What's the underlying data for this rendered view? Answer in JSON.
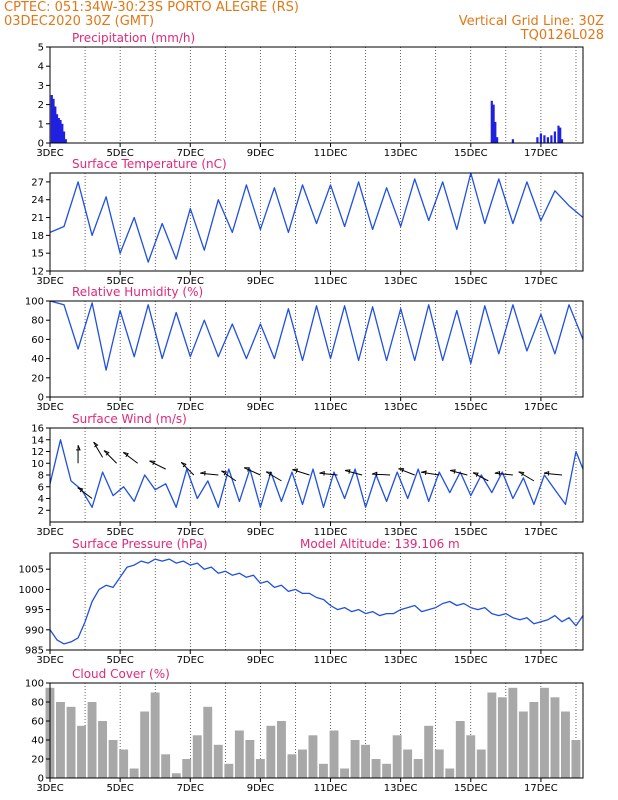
{
  "header": {
    "line1": "CPTEC:   051:34W-30:23S   PORTO ALEGRE (RS)",
    "line2_left": "03DEC2020 30Z (GMT)",
    "line2_right": "Vertical Grid Line: 30Z",
    "line3_right": "TQ0126L028"
  },
  "colors": {
    "header_text": "#e07818",
    "panel_title": "#e0287a",
    "series_line": "#2050e0",
    "bars": "#2020e0",
    "cloud_bars": "#a8a8a8",
    "grid": "#000000"
  },
  "chart_data": [
    {
      "type": "bar",
      "title": "Precipitation (mm/h)",
      "x_tick_labels": [
        "3DEC",
        "5DEC",
        "7DEC",
        "9DEC",
        "11DEC",
        "13DEC",
        "15DEC",
        "17DEC"
      ],
      "x_range_days": [
        3.0,
        18.2
      ],
      "ylim": [
        0,
        5
      ],
      "y_ticks": [
        0,
        1,
        2,
        3,
        4,
        5
      ],
      "grid": "vertical dotted at 30Z each day",
      "x": [
        3.05,
        3.1,
        3.15,
        3.2,
        3.25,
        3.3,
        3.35,
        3.4,
        3.45,
        15.6,
        15.65,
        15.7,
        15.75,
        16.2,
        16.9,
        17.0,
        17.1,
        17.2,
        17.3,
        17.4,
        17.5,
        17.55,
        17.6
      ],
      "values": [
        2.5,
        2.3,
        1.9,
        1.5,
        1.3,
        1.2,
        1.0,
        0.6,
        0.2,
        2.2,
        2.0,
        1.1,
        0.3,
        0.2,
        0.3,
        0.5,
        0.4,
        0.3,
        0.4,
        0.6,
        0.9,
        0.8,
        0.2
      ]
    },
    {
      "type": "line",
      "title": "Surface Temperature (nC)",
      "ylim": [
        12,
        28.5
      ],
      "y_ticks": [
        12,
        15,
        18,
        21,
        24,
        27
      ],
      "x": [
        3.0,
        3.4,
        3.8,
        4.2,
        4.6,
        5.0,
        5.4,
        5.8,
        6.2,
        6.6,
        7.0,
        7.4,
        7.8,
        8.2,
        8.6,
        9.0,
        9.4,
        9.8,
        10.2,
        10.6,
        11.0,
        11.4,
        11.8,
        12.2,
        12.6,
        13.0,
        13.4,
        13.8,
        14.2,
        14.6,
        15.0,
        15.4,
        15.8,
        16.2,
        16.6,
        17.0,
        17.4,
        17.8,
        18.2
      ],
      "values": [
        18.5,
        19.5,
        27.0,
        18.0,
        24.5,
        15.0,
        21.0,
        13.5,
        20.0,
        14.0,
        22.5,
        15.5,
        24.0,
        18.5,
        26.5,
        19.0,
        26.0,
        18.5,
        26.5,
        20.0,
        26.5,
        19.5,
        27.0,
        19.0,
        26.0,
        19.5,
        27.5,
        20.5,
        27.0,
        19.0,
        28.5,
        20.0,
        27.5,
        20.0,
        27.0,
        20.5,
        25.5,
        23.0,
        21.0
      ]
    },
    {
      "type": "line",
      "title": "Relative Humidity (%)",
      "ylim": [
        0,
        100
      ],
      "y_ticks": [
        0,
        20,
        40,
        60,
        80,
        100
      ],
      "x": [
        3.0,
        3.4,
        3.8,
        4.2,
        4.6,
        5.0,
        5.4,
        5.8,
        6.2,
        6.6,
        7.0,
        7.4,
        7.8,
        8.2,
        8.6,
        9.0,
        9.4,
        9.8,
        10.2,
        10.6,
        11.0,
        11.4,
        11.8,
        12.2,
        12.6,
        13.0,
        13.4,
        13.8,
        14.2,
        14.6,
        15.0,
        15.4,
        15.8,
        16.2,
        16.6,
        17.0,
        17.4,
        17.8,
        18.2
      ],
      "values": [
        100,
        96,
        50,
        98,
        28,
        90,
        42,
        96,
        40,
        88,
        42,
        80,
        42,
        76,
        40,
        76,
        40,
        92,
        38,
        95,
        40,
        95,
        38,
        94,
        38,
        92,
        38,
        96,
        38,
        90,
        35,
        95,
        45,
        96,
        48,
        86,
        45,
        96,
        60
      ]
    },
    {
      "type": "line",
      "title": "Surface Wind (m/s)",
      "ylim": [
        0,
        16
      ],
      "y_ticks": [
        2,
        4,
        6,
        8,
        10,
        12,
        14,
        16
      ],
      "x": [
        3.0,
        3.3,
        3.6,
        3.9,
        4.2,
        4.5,
        4.8,
        5.1,
        5.4,
        5.7,
        6.0,
        6.3,
        6.6,
        6.9,
        7.2,
        7.5,
        7.8,
        8.1,
        8.4,
        8.7,
        9.0,
        9.3,
        9.6,
        9.9,
        10.2,
        10.5,
        10.8,
        11.1,
        11.4,
        11.7,
        12.0,
        12.3,
        12.6,
        12.9,
        13.2,
        13.5,
        13.8,
        14.1,
        14.4,
        14.7,
        15.0,
        15.3,
        15.6,
        15.9,
        16.2,
        16.5,
        16.8,
        17.1,
        17.4,
        17.7,
        18.0,
        18.2
      ],
      "values": [
        6.5,
        14.0,
        7.0,
        5.5,
        2.5,
        8.5,
        4.5,
        6.0,
        3.5,
        8.0,
        5.5,
        6.5,
        2.5,
        9.0,
        4.0,
        7.0,
        2.5,
        9.0,
        3.5,
        9.0,
        2.5,
        8.5,
        3.5,
        8.5,
        3.0,
        9.0,
        2.5,
        8.5,
        4.0,
        9.0,
        2.5,
        8.0,
        3.5,
        8.5,
        4.0,
        9.0,
        3.5,
        8.5,
        5.0,
        8.5,
        4.5,
        8.0,
        5.0,
        8.5,
        4.0,
        7.5,
        3.0,
        8.0,
        5.5,
        3.0,
        12.0,
        9.0
      ],
      "arrows": [
        {
          "x": 3.8,
          "speed": 10,
          "dx": 0,
          "dy": 1
        },
        {
          "x": 4.2,
          "speed": 4,
          "dx": -0.8,
          "dy": 0.6
        },
        {
          "x": 4.5,
          "speed": 11,
          "dx": -0.5,
          "dy": 0.85
        },
        {
          "x": 4.9,
          "speed": 10,
          "dx": -0.7,
          "dy": 0.7
        },
        {
          "x": 5.5,
          "speed": 10,
          "dx": -0.8,
          "dy": 0.6
        },
        {
          "x": 6.3,
          "speed": 9,
          "dx": -0.9,
          "dy": 0.45
        },
        {
          "x": 7.1,
          "speed": 8,
          "dx": -0.7,
          "dy": 0.7
        },
        {
          "x": 7.8,
          "speed": 8,
          "dx": -1,
          "dy": 0.1
        },
        {
          "x": 8.3,
          "speed": 7,
          "dx": -0.8,
          "dy": 0.55
        },
        {
          "x": 9.0,
          "speed": 8,
          "dx": -0.9,
          "dy": 0.4
        },
        {
          "x": 9.6,
          "speed": 7,
          "dx": -0.85,
          "dy": 0.5
        },
        {
          "x": 10.4,
          "speed": 8,
          "dx": -0.95,
          "dy": 0.3
        },
        {
          "x": 11.2,
          "speed": 8,
          "dx": -1,
          "dy": 0.1
        },
        {
          "x": 11.9,
          "speed": 8,
          "dx": -0.95,
          "dy": 0.25
        },
        {
          "x": 12.7,
          "speed": 8,
          "dx": -1,
          "dy": 0.05
        },
        {
          "x": 13.4,
          "speed": 8,
          "dx": -0.9,
          "dy": 0.35
        },
        {
          "x": 14.1,
          "speed": 8,
          "dx": -1,
          "dy": 0.15
        },
        {
          "x": 14.9,
          "speed": 8,
          "dx": -0.95,
          "dy": 0.25
        },
        {
          "x": 15.5,
          "speed": 7,
          "dx": -0.85,
          "dy": 0.45
        },
        {
          "x": 16.2,
          "speed": 8,
          "dx": -1,
          "dy": 0.1
        },
        {
          "x": 16.8,
          "speed": 7,
          "dx": -0.85,
          "dy": 0.5
        },
        {
          "x": 17.6,
          "speed": 8,
          "dx": -1,
          "dy": 0.1
        }
      ]
    },
    {
      "type": "line",
      "title": "Surface Pressure (hPa)",
      "subtitle": "Model Altitude: 139.106  m",
      "ylim": [
        985,
        1009
      ],
      "y_ticks": [
        985,
        990,
        995,
        1000,
        1005
      ],
      "x": [
        3.0,
        3.2,
        3.4,
        3.6,
        3.8,
        4.0,
        4.2,
        4.4,
        4.6,
        4.8,
        5.0,
        5.2,
        5.4,
        5.6,
        5.8,
        6.0,
        6.2,
        6.4,
        6.6,
        6.8,
        7.0,
        7.2,
        7.4,
        7.6,
        7.8,
        8.0,
        8.2,
        8.4,
        8.6,
        8.8,
        9.0,
        9.2,
        9.4,
        9.6,
        9.8,
        10.0,
        10.2,
        10.4,
        10.6,
        10.8,
        11.0,
        11.2,
        11.4,
        11.6,
        11.8,
        12.0,
        12.2,
        12.4,
        12.6,
        12.8,
        13.0,
        13.2,
        13.4,
        13.6,
        13.8,
        14.0,
        14.2,
        14.4,
        14.6,
        14.8,
        15.0,
        15.2,
        15.4,
        15.6,
        15.8,
        16.0,
        16.2,
        16.4,
        16.6,
        16.8,
        17.0,
        17.2,
        17.4,
        17.6,
        17.8,
        18.0,
        18.2
      ],
      "values": [
        990,
        987.5,
        986.5,
        987,
        988,
        992,
        997,
        1000,
        1001,
        1000.5,
        1003,
        1005.5,
        1006,
        1007,
        1006.5,
        1007.5,
        1007,
        1007.5,
        1006.5,
        1007,
        1006,
        1006.5,
        1005,
        1005.5,
        1004,
        1004.5,
        1003.5,
        1004,
        1003,
        1003.5,
        1001.5,
        1002,
        1000.5,
        1001,
        999.5,
        1000,
        999,
        999,
        998,
        997.5,
        996,
        995,
        995.5,
        994.5,
        995,
        994,
        994.5,
        993.5,
        994,
        994,
        995,
        995.5,
        996,
        994.5,
        995,
        995.5,
        996.5,
        997,
        996,
        996.5,
        995.5,
        995,
        995.5,
        994,
        993.5,
        994,
        993,
        992.5,
        993,
        991.5,
        992,
        992.5,
        993.5,
        992,
        993,
        991,
        993.5
      ]
    },
    {
      "type": "bar",
      "title": "Cloud Cover (%)",
      "ylim": [
        0,
        100
      ],
      "y_ticks": [
        0,
        20,
        40,
        60,
        80,
        100
      ],
      "x": [
        3.0,
        3.3,
        3.6,
        3.9,
        4.2,
        4.5,
        4.8,
        5.1,
        5.4,
        5.7,
        6.0,
        6.3,
        6.6,
        6.9,
        7.2,
        7.5,
        7.8,
        8.1,
        8.4,
        8.7,
        9.0,
        9.3,
        9.6,
        9.9,
        10.2,
        10.5,
        10.8,
        11.1,
        11.4,
        11.7,
        12.0,
        12.3,
        12.6,
        12.9,
        13.2,
        13.5,
        13.8,
        14.1,
        14.4,
        14.7,
        15.0,
        15.3,
        15.6,
        15.9,
        16.2,
        16.5,
        16.8,
        17.1,
        17.4,
        17.7,
        18.0
      ],
      "values": [
        95,
        80,
        75,
        55,
        80,
        60,
        40,
        30,
        10,
        70,
        90,
        25,
        5,
        20,
        45,
        75,
        35,
        15,
        50,
        40,
        20,
        55,
        60,
        25,
        30,
        45,
        15,
        50,
        10,
        40,
        35,
        20,
        15,
        45,
        30,
        20,
        55,
        30,
        10,
        60,
        45,
        30,
        90,
        85,
        95,
        70,
        80,
        95,
        85,
        70,
        40
      ]
    }
  ]
}
